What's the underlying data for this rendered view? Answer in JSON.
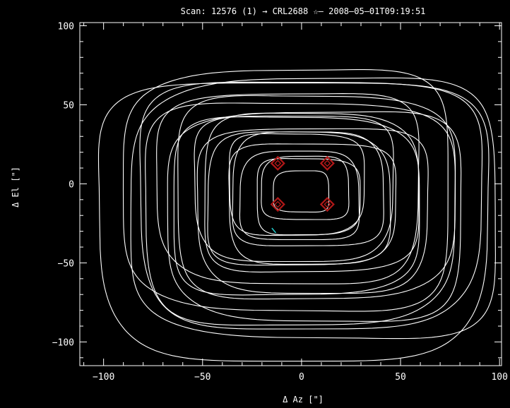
{
  "title": "Scan: 12576 (1) → CRL2688 ☆— 2008–05–01T09:19:51",
  "chart_data": {
    "type": "line",
    "title": "Scan: 12576 (1) → CRL2688 ☆— 2008–05–01T09:19:51",
    "xlabel": "Δ Az [\"]",
    "ylabel": "Δ El [\"]",
    "xlim": [
      -112,
      101
    ],
    "ylim": [
      -115,
      102
    ],
    "xticks": [
      -100,
      -50,
      0,
      50,
      100
    ],
    "yticks": [
      -100,
      -50,
      0,
      50,
      100
    ],
    "xtick_labels": [
      "−100",
      "−50",
      "0",
      "50",
      "100"
    ],
    "ytick_labels": [
      "−100",
      "−50",
      "0",
      "50",
      "100"
    ],
    "grid": false,
    "background": "#000000",
    "trace_color": "#ffffff",
    "marker_color": "#b01818",
    "cyan_mark_color": "#22cccc",
    "series": [
      {
        "type": "scan-trace",
        "color": "#ffffff",
        "loops": [
          {
            "cx": -4,
            "cy": -22,
            "rx": 98,
            "ry": 88,
            "phase": 0.0
          },
          {
            "cx": 4,
            "cy": -12,
            "rx": 86,
            "ry": 78,
            "phase": 0.4
          },
          {
            "cx": -2,
            "cy": -18,
            "rx": 78,
            "ry": 70,
            "phase": 0.8
          },
          {
            "cx": 6,
            "cy": -8,
            "rx": 70,
            "ry": 64,
            "phase": 1.2
          },
          {
            "cx": -4,
            "cy": -14,
            "rx": 62,
            "ry": 56,
            "phase": 1.6
          },
          {
            "cx": 4,
            "cy": -6,
            "rx": 54,
            "ry": 50,
            "phase": 2.0
          },
          {
            "cx": -2,
            "cy": -10,
            "rx": 46,
            "ry": 42,
            "phase": 2.4
          },
          {
            "cx": 3,
            "cy": -4,
            "rx": 38,
            "ry": 36,
            "phase": 2.8
          },
          {
            "cx": -1,
            "cy": -8,
            "rx": 30,
            "ry": 28,
            "phase": 3.2
          },
          {
            "cx": 2,
            "cy": -3,
            "rx": 22,
            "ry": 20,
            "phase": 3.6
          },
          {
            "cx": 0,
            "cy": -5,
            "rx": 14,
            "ry": 13,
            "phase": 4.0
          },
          {
            "cx": 8,
            "cy": -16,
            "rx": 92,
            "ry": 82,
            "phase": 4.4
          },
          {
            "cx": -6,
            "cy": -4,
            "rx": 82,
            "ry": 76,
            "phase": 4.8
          },
          {
            "cx": 8,
            "cy": -20,
            "rx": 74,
            "ry": 66,
            "phase": 5.2
          },
          {
            "cx": -6,
            "cy": -2,
            "rx": 66,
            "ry": 60,
            "phase": 5.6
          },
          {
            "cx": 6,
            "cy": -16,
            "rx": 58,
            "ry": 52,
            "phase": 6.0
          },
          {
            "cx": -4,
            "cy": -2,
            "rx": 50,
            "ry": 46,
            "phase": 6.4
          },
          {
            "cx": 5,
            "cy": -12,
            "rx": 42,
            "ry": 38,
            "phase": 6.8
          },
          {
            "cx": -3,
            "cy": 0,
            "rx": 34,
            "ry": 32,
            "phase": 7.2
          },
          {
            "cx": 3,
            "cy": -8,
            "rx": 26,
            "ry": 24,
            "phase": 7.6
          }
        ]
      }
    ],
    "markers": [
      {
        "x": -12,
        "y": 13
      },
      {
        "x": 13,
        "y": 13
      },
      {
        "x": -12,
        "y": -13
      },
      {
        "x": 13,
        "y": -13
      }
    ]
  }
}
